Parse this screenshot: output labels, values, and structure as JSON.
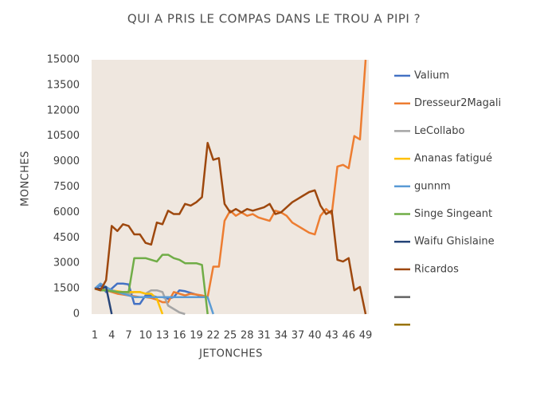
{
  "chart_data": {
    "type": "line",
    "title": "QUI A PRIS LE COMPAS DANS LE TROU A PIPI ?",
    "x_label": "JETONCHES",
    "y_label": "MONCHES",
    "categories": [
      1,
      null,
      null,
      4,
      null,
      null,
      7,
      null,
      null,
      10,
      null,
      null,
      13,
      null,
      null,
      16,
      null,
      null,
      19,
      null,
      null,
      22,
      null,
      null,
      25,
      null,
      null,
      28,
      null,
      null,
      31,
      null,
      null,
      34,
      null,
      null,
      37,
      null,
      null,
      40,
      null,
      null,
      43,
      null,
      null,
      46,
      null,
      null,
      49
    ],
    "ylim": [
      0,
      15000
    ],
    "yticks": [
      0,
      1500,
      3000,
      4500,
      6000,
      7500,
      9000,
      10500,
      12000,
      13500,
      15000
    ],
    "legend": "right",
    "series": [
      {
        "name": "Valium",
        "color": "#4472c4",
        "values": [
          1500,
          1700,
          1300,
          1500,
          1800,
          1800,
          1750,
          600,
          600,
          1100,
          1100,
          1000,
          1000,
          900,
          1000,
          1400,
          1350,
          1250,
          1150,
          1050,
          1000,
          null,
          null,
          null,
          null,
          null,
          null,
          null,
          null,
          null,
          null,
          null,
          null,
          null,
          null,
          null,
          null,
          null,
          null,
          null,
          null,
          null,
          null,
          null,
          null,
          null,
          null,
          null,
          null
        ]
      },
      {
        "name": "Dresseur2Magali",
        "color": "#ed7d31",
        "values": [
          1500,
          1450,
          1400,
          1300,
          1200,
          1150,
          1100,
          1050,
          1000,
          1000,
          950,
          850,
          700,
          700,
          1300,
          1200,
          1100,
          1200,
          1150,
          1100,
          1000,
          2800,
          2800,
          5500,
          6100,
          5800,
          6000,
          5800,
          5900,
          5700,
          5600,
          5500,
          6100,
          6000,
          5800,
          5400,
          5200,
          5000,
          4800,
          4700,
          5800,
          6200,
          5900,
          8700,
          8800,
          8600,
          10500,
          10300,
          15000
        ]
      },
      {
        "name": "LeCollabo",
        "color": "#a5a5a5",
        "values": [
          1500,
          1450,
          1400,
          1400,
          1300,
          1200,
          1200,
          1300,
          1300,
          1200,
          1400,
          1400,
          1300,
          500,
          300,
          100,
          0,
          null,
          null,
          null,
          null,
          null,
          null,
          null,
          null,
          null,
          null,
          null,
          null,
          null,
          null,
          null,
          null,
          null,
          null,
          null,
          null,
          null,
          null,
          null,
          null,
          null,
          null,
          null,
          null,
          null,
          null,
          null,
          null
        ]
      },
      {
        "name": "Ananas fatigué",
        "color": "#ffc000",
        "values": [
          1500,
          1450,
          1400,
          1400,
          1350,
          1300,
          1300,
          1300,
          1300,
          1200,
          1200,
          900,
          0,
          null,
          null,
          null,
          null,
          null,
          null,
          null,
          null,
          null,
          null,
          null,
          null,
          null,
          null,
          null,
          null,
          null,
          null,
          null,
          null,
          null,
          null,
          null,
          null,
          null,
          null,
          null,
          null,
          null,
          null,
          null,
          null,
          null,
          null,
          null,
          null
        ]
      },
      {
        "name": "gunnm",
        "color": "#5b9bd5",
        "values": [
          1500,
          1800,
          1600,
          1400,
          1300,
          1200,
          1100,
          1000,
          1000,
          1000,
          1000,
          1000,
          1000,
          1000,
          1000,
          1000,
          1000,
          1000,
          1000,
          1000,
          1000,
          0,
          null,
          null,
          null,
          null,
          null,
          null,
          null,
          null,
          null,
          null,
          null,
          null,
          null,
          null,
          null,
          null,
          null,
          null,
          null,
          null,
          null,
          null,
          null,
          null,
          null,
          null,
          null
        ]
      },
      {
        "name": "Singe Singeant",
        "color": "#70ad47",
        "values": [
          1500,
          1400,
          1400,
          1350,
          1300,
          1300,
          1300,
          3300,
          3300,
          3300,
          3200,
          3100,
          3500,
          3500,
          3300,
          3200,
          3000,
          3000,
          3000,
          2900,
          0,
          null,
          null,
          null,
          null,
          null,
          null,
          null,
          null,
          null,
          null,
          null,
          null,
          null,
          null,
          null,
          null,
          null,
          null,
          null,
          null,
          null,
          null,
          null,
          null,
          null,
          null,
          null,
          null
        ]
      },
      {
        "name": "Waifu Ghislaine",
        "color": "#264478",
        "values": [
          1500,
          1500,
          1600,
          0,
          null,
          null,
          null,
          null,
          null,
          null,
          null,
          null,
          null,
          null,
          null,
          null,
          null,
          null,
          null,
          null,
          null,
          null,
          null,
          null,
          null,
          null,
          null,
          null,
          null,
          null,
          null,
          null,
          null,
          null,
          null,
          null,
          null,
          null,
          null,
          null,
          null,
          null,
          null,
          null,
          null,
          null,
          null,
          null,
          null
        ]
      },
      {
        "name": "Ricardos",
        "color": "#9e480e",
        "values": [
          1500,
          1400,
          2000,
          5200,
          4900,
          5300,
          5200,
          4700,
          4700,
          4200,
          4100,
          5400,
          5300,
          6100,
          5900,
          5900,
          6500,
          6400,
          6600,
          6900,
          10100,
          9100,
          9200,
          6500,
          6000,
          6200,
          6000,
          6200,
          6100,
          6200,
          6300,
          6500,
          5900,
          6000,
          6300,
          6600,
          6800,
          7000,
          7200,
          7300,
          6400,
          5900,
          6100,
          3200,
          3100,
          3300,
          1400,
          1600,
          0
        ]
      },
      {
        "color": "#636363",
        "values": [
          null,
          null,
          null,
          null,
          null,
          null,
          null,
          null,
          null,
          null,
          null,
          null,
          null,
          null,
          null,
          null,
          null,
          null,
          null,
          null,
          null,
          null,
          null,
          null,
          null,
          null,
          null,
          null,
          null,
          null,
          null,
          null,
          null,
          null,
          null,
          null,
          null,
          null,
          null,
          null,
          null,
          null,
          null,
          null,
          null,
          null,
          null,
          null,
          null
        ]
      },
      {
        "color": "#997300",
        "values": [
          null,
          null,
          null,
          null,
          null,
          null,
          null,
          null,
          null,
          null,
          null,
          null,
          null,
          null,
          null,
          null,
          null,
          null,
          null,
          null,
          null,
          null,
          null,
          null,
          null,
          null,
          null,
          null,
          null,
          null,
          null,
          null,
          null,
          null,
          null,
          null,
          null,
          null,
          null,
          null,
          null,
          null,
          null,
          null,
          null,
          null,
          null,
          null,
          null
        ]
      }
    ]
  }
}
